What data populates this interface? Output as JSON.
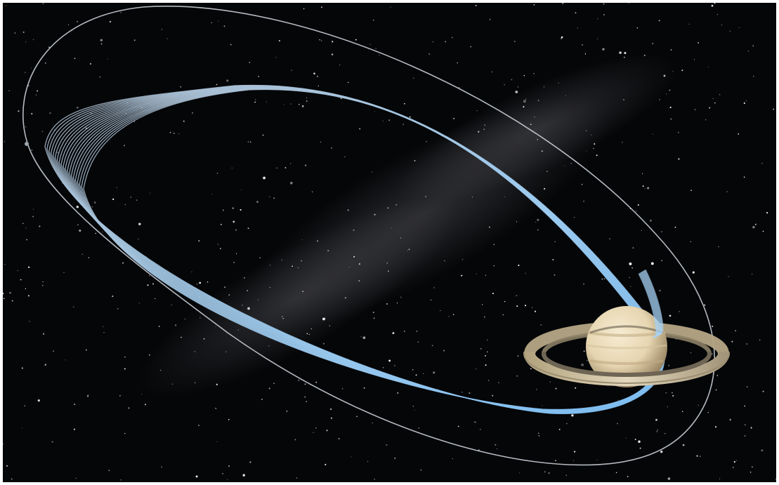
{
  "scene": {
    "subject": "saturn-orbit-illustration",
    "colors": {
      "space": "#050608",
      "orbit_outer": "#c9cfd6",
      "orbit_inner": "#bcd6ee",
      "orbit_glow": "#8fc3ee",
      "saturn_body": "#e9dcbc",
      "saturn_band": "#cdb88f",
      "ring_light": "#d8ccae",
      "ring_dark": "#6f6554",
      "milky_way": "#4b4c52"
    },
    "inner_orbit_count": 20
  }
}
